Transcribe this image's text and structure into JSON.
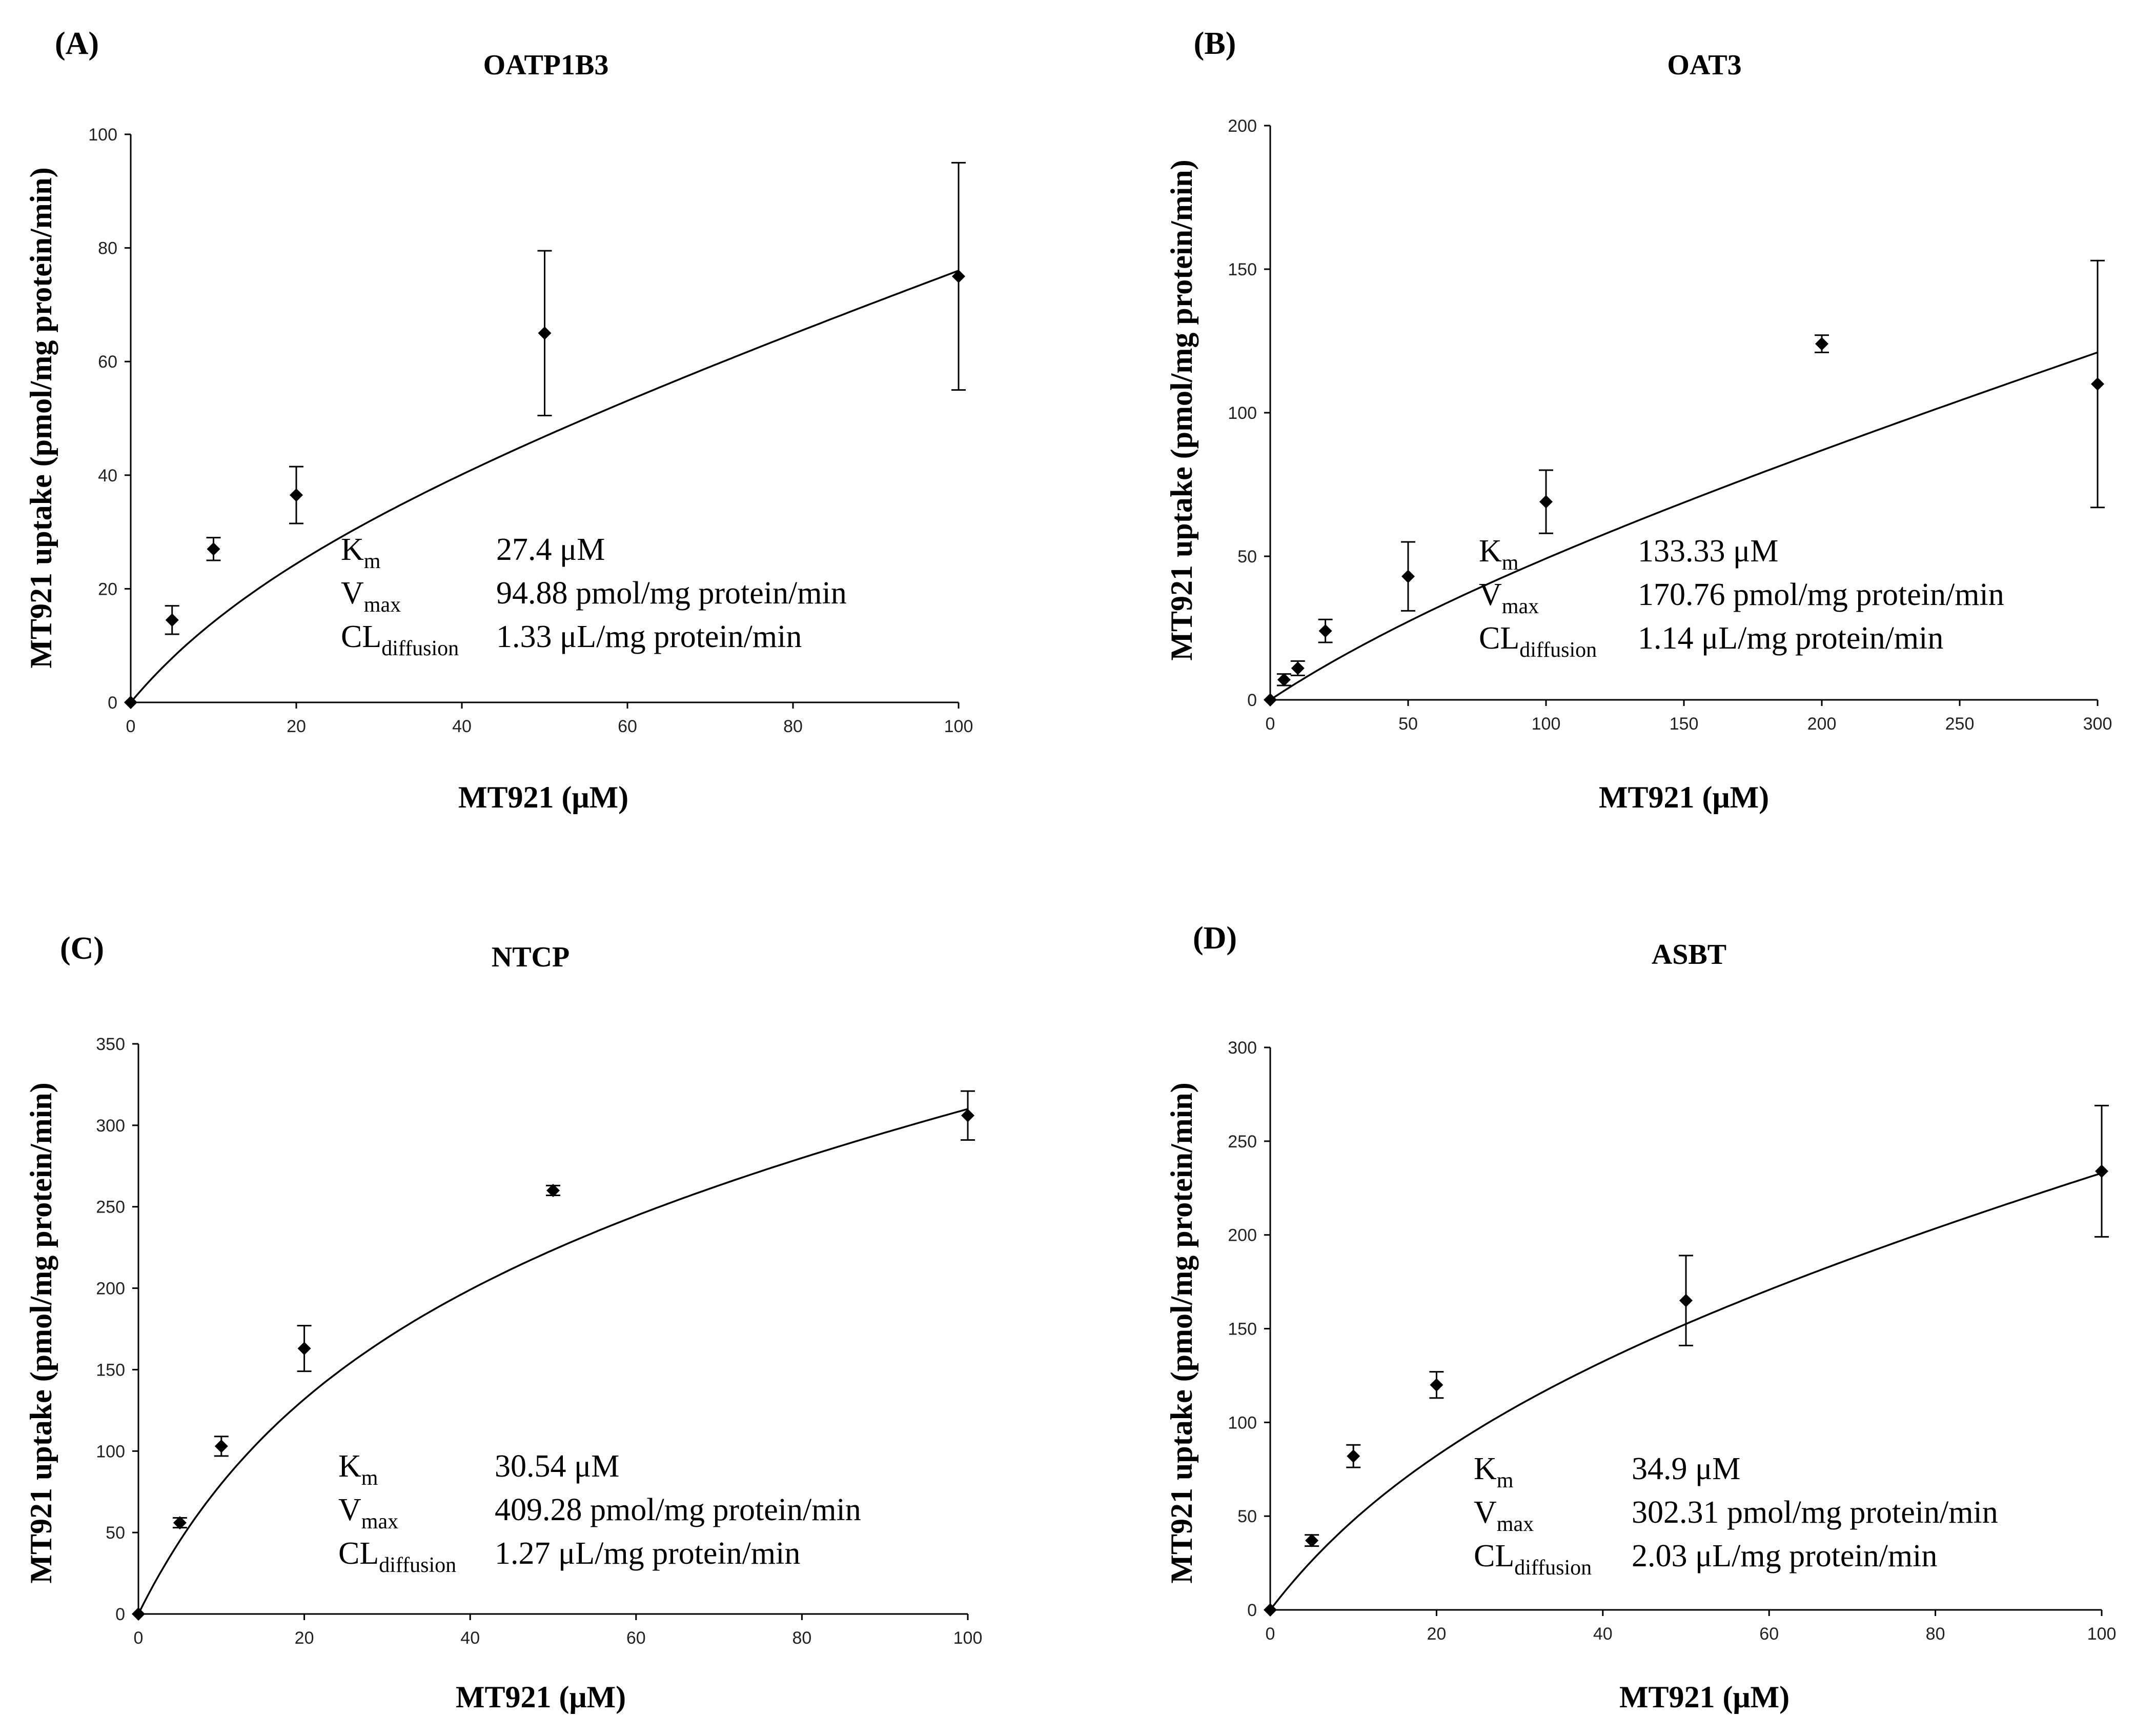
{
  "chart_data": [
    {
      "type": "scatter",
      "panel": "(A)",
      "title": "OATP1B3",
      "xlabel": "MT921 (μM)",
      "ylabel": "MT921 uptake (pmol/mg protein/min)",
      "xlim": [
        0,
        100
      ],
      "ylim": [
        0,
        100
      ],
      "x_ticks": [
        0,
        20,
        40,
        60,
        80,
        100
      ],
      "y_ticks": [
        0,
        20,
        40,
        60,
        80,
        100
      ],
      "x": [
        0,
        5,
        10,
        20,
        50,
        100
      ],
      "y": [
        0,
        14.5,
        27,
        36.5,
        65,
        75
      ],
      "error": [
        0,
        2.5,
        2,
        5,
        14.5,
        20
      ],
      "fit": {
        "model": "michaelis-menten + diffusion",
        "Km": 27.4,
        "Vmax": 94.88,
        "CL": 1.33,
        "curve_end": 76
      },
      "params": [
        {
          "sym": "K",
          "sub": "m",
          "value": "27.4 μM"
        },
        {
          "sym": "V",
          "sub": "max",
          "value": "94.88 pmol/mg protein/min"
        },
        {
          "sym": "CL",
          "sub": "diffusion",
          "value": "1.33 μL/mg protein/min"
        }
      ]
    },
    {
      "type": "scatter",
      "panel": "(B)",
      "title": "OAT3",
      "xlabel": "MT921 (μM)",
      "ylabel": "MT921 uptake (pmol/mg protein/min)",
      "xlim": [
        0,
        300
      ],
      "ylim": [
        0,
        200
      ],
      "x_ticks": [
        0,
        50,
        100,
        150,
        200,
        250,
        300
      ],
      "y_ticks": [
        0,
        50,
        100,
        150,
        200
      ],
      "x": [
        0,
        5,
        10,
        20,
        50,
        100,
        200,
        300
      ],
      "y": [
        0,
        7,
        11,
        24,
        43,
        69,
        124,
        110
      ],
      "error": [
        0,
        2,
        2.5,
        4,
        12,
        11,
        3,
        43
      ],
      "fit": {
        "model": "michaelis-menten + diffusion",
        "Km": 133.33,
        "Vmax": 170.76,
        "CL": 1.14,
        "curve_end": 121
      },
      "params": [
        {
          "sym": "K",
          "sub": "m",
          "value": "133.33 μM"
        },
        {
          "sym": "V",
          "sub": "max",
          "value": "170.76 pmol/mg protein/min"
        },
        {
          "sym": "CL",
          "sub": "diffusion",
          "value": "1.14 μL/mg protein/min"
        }
      ]
    },
    {
      "type": "scatter",
      "panel": "(C)",
      "title": "NTCP",
      "xlabel": "MT921 (μM)",
      "ylabel": "MT921 uptake (pmol/mg protein/min)",
      "xlim": [
        0,
        100
      ],
      "ylim": [
        0,
        350
      ],
      "x_ticks": [
        0,
        20,
        40,
        60,
        80,
        100
      ],
      "y_ticks": [
        0,
        50,
        100,
        150,
        200,
        250,
        300,
        350
      ],
      "x": [
        0,
        5,
        10,
        20,
        50,
        100
      ],
      "y": [
        0,
        56,
        103,
        163,
        260,
        306
      ],
      "error": [
        0,
        3,
        6,
        14,
        3,
        15
      ],
      "fit": {
        "model": "michaelis-menten + diffusion",
        "Km": 30.54,
        "Vmax": 409.28,
        "CL": 1.27,
        "curve_end": 310
      },
      "params": [
        {
          "sym": "K",
          "sub": "m",
          "value": "30.54 μM"
        },
        {
          "sym": "V",
          "sub": "max",
          "value": "409.28 pmol/mg protein/min"
        },
        {
          "sym": "CL",
          "sub": "diffusion",
          "value": "1.27 μL/mg protein/min"
        }
      ]
    },
    {
      "type": "scatter",
      "panel": "(D)",
      "title": "ASBT",
      "xlabel": "MT921 (μM)",
      "ylabel": "MT921 uptake (pmol/mg protein/min)",
      "xlim": [
        0,
        100
      ],
      "ylim": [
        0,
        300
      ],
      "x_ticks": [
        0,
        20,
        40,
        60,
        80,
        100
      ],
      "y_ticks": [
        0,
        50,
        100,
        150,
        200,
        250,
        300
      ],
      "x": [
        0,
        5,
        10,
        20,
        50,
        100
      ],
      "y": [
        0,
        37,
        82,
        120,
        165,
        234
      ],
      "error": [
        0,
        3,
        6,
        7,
        24,
        35
      ],
      "fit": {
        "model": "michaelis-menten + diffusion",
        "Km": 34.9,
        "Vmax": 302.31,
        "CL": 2.03,
        "curve_end": 233
      },
      "params": [
        {
          "sym": "K",
          "sub": "m",
          "value": "34.9 μM"
        },
        {
          "sym": "V",
          "sub": "max",
          "value": "302.31 pmol/mg protein/min"
        },
        {
          "sym": "CL",
          "sub": "diffusion",
          "value": "2.03 μL/mg protein/min"
        }
      ]
    }
  ]
}
